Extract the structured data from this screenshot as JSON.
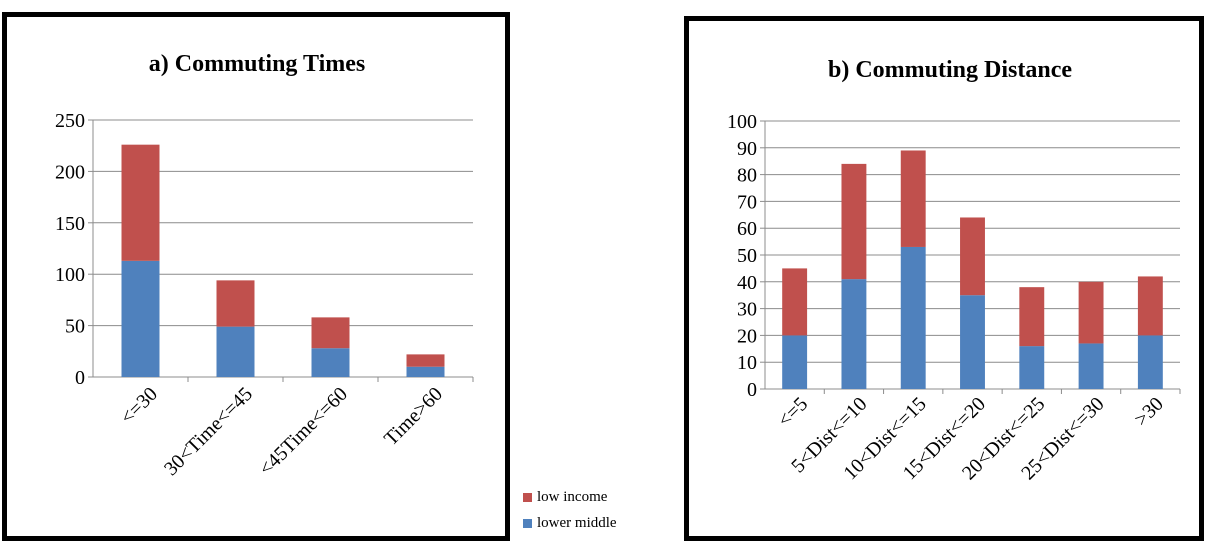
{
  "chart_data": [
    {
      "type": "bar",
      "stacked": true,
      "title": "a) Commuting Times",
      "categories": [
        "<=30",
        "30<Time<=45",
        "<45Time<=60",
        "Time>60"
      ],
      "series": [
        {
          "name": "lower  middle",
          "values": [
            113,
            49,
            28,
            10
          ]
        },
        {
          "name": "low income",
          "values": [
            113,
            45,
            30,
            12
          ]
        }
      ],
      "ylim": [
        0,
        250
      ],
      "yticks": [
        0,
        50,
        100,
        150,
        200,
        250
      ],
      "grid": true,
      "legend": "shared, bottom-center"
    },
    {
      "type": "bar",
      "stacked": true,
      "title": "b) Commuting Distance",
      "categories": [
        "<=5",
        "5<Dist<=10",
        "10<Dist<=15",
        "15<Dist<=20",
        "20<Dist<=25",
        "25<Dist<=30",
        ">30"
      ],
      "series": [
        {
          "name": "lower  middle",
          "values": [
            20,
            41,
            53,
            35,
            16,
            17,
            20
          ]
        },
        {
          "name": "low income",
          "values": [
            25,
            43,
            36,
            29,
            22,
            23,
            22
          ]
        }
      ],
      "ylim": [
        0,
        100
      ],
      "yticks": [
        0,
        10,
        20,
        30,
        40,
        50,
        60,
        70,
        80,
        90,
        100
      ],
      "grid": true,
      "legend": "shared, bottom-center"
    }
  ],
  "legend": [
    {
      "label": "low income",
      "color": "#c0504d"
    },
    {
      "label": "lower  middle",
      "color": "#4f81bd"
    }
  ],
  "colors": {
    "lower_middle": "#4f81bd",
    "low_income": "#c0504d",
    "grid": "#8c8c8c",
    "axis": "#8c8c8c"
  }
}
